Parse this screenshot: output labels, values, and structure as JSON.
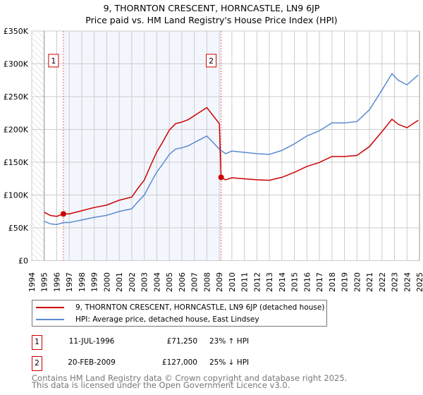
{
  "chart_data": {
    "type": "line",
    "title": "9, THORNTON CRESCENT, HORNCASTLE, LN9 6JP",
    "subtitle": "Price paid vs. HM Land Registry's House Price Index (HPI)",
    "xlim": [
      1994,
      2025
    ],
    "ylim": [
      0,
      350000
    ],
    "x_ticks": [
      "1994",
      "1995",
      "1996",
      "1997",
      "1998",
      "1999",
      "2000",
      "2001",
      "2002",
      "2003",
      "2004",
      "2005",
      "2006",
      "2007",
      "2008",
      "2009",
      "2010",
      "2011",
      "2012",
      "2013",
      "2014",
      "2015",
      "2016",
      "2017",
      "2018",
      "2019",
      "2020",
      "2021",
      "2022",
      "2023",
      "2024",
      "2025"
    ],
    "y_ticks": [
      {
        "v": 0,
        "label": "£0"
      },
      {
        "v": 50000,
        "label": "£50K"
      },
      {
        "v": 100000,
        "label": "£100K"
      },
      {
        "v": 150000,
        "label": "£150K"
      },
      {
        "v": 200000,
        "label": "£200K"
      },
      {
        "v": 250000,
        "label": "£250K"
      },
      {
        "v": 300000,
        "label": "£300K"
      },
      {
        "v": 350000,
        "label": "£350K"
      }
    ],
    "grid": true,
    "series": [
      {
        "name": "9, THORNTON CRESCENT, HORNCASTLE, LN9 6JP (detached house)",
        "color": "#cc0000",
        "x": [
          1995,
          1995.5,
          1996,
          1996.53,
          1997,
          1998,
          1999,
          2000,
          2001,
          2002,
          2002.5,
          2003,
          2003.5,
          2004,
          2004.5,
          2005,
          2005.5,
          2006,
          2006.5,
          2007,
          2007.5,
          2008,
          2008.5,
          2009,
          2009.14,
          2009.5,
          2010,
          2011,
          2012,
          2013,
          2014,
          2015,
          2016,
          2017,
          2018,
          2019,
          2020,
          2021,
          2022,
          2022.8,
          2023.3,
          2024,
          2024.9
        ],
        "y": [
          73700,
          68800,
          67500,
          71250,
          71200,
          76100,
          81000,
          84700,
          92100,
          97000,
          110500,
          122800,
          144900,
          165800,
          181700,
          199000,
          208800,
          211200,
          214900,
          221000,
          227200,
          233300,
          221000,
          208800,
          127000,
          123200,
          126300,
          124700,
          123200,
          122500,
          127000,
          134600,
          143600,
          149700,
          158800,
          158800,
          160300,
          173900,
          196600,
          215500,
          207900,
          202600,
          214000
        ]
      },
      {
        "name": "HPI: Average price, detached house, East Lindsey",
        "color": "#5b8bd0",
        "x": [
          1995,
          1995.5,
          1996,
          1996.53,
          1997,
          1998,
          1999,
          2000,
          2001,
          2002,
          2002.5,
          2003,
          2003.5,
          2004,
          2004.5,
          2005,
          2005.5,
          2006,
          2006.5,
          2007,
          2007.5,
          2008,
          2008.5,
          2009,
          2009.14,
          2009.5,
          2010,
          2011,
          2012,
          2013,
          2014,
          2015,
          2016,
          2017,
          2018,
          2019,
          2020,
          2021,
          2022,
          2022.8,
          2023.3,
          2024,
          2024.9
        ],
        "y": [
          60000,
          56000,
          55000,
          58000,
          58000,
          62000,
          66000,
          69000,
          75000,
          79000,
          90000,
          100000,
          118000,
          135000,
          148000,
          162000,
          170000,
          172000,
          175000,
          180000,
          185000,
          190000,
          180000,
          170000,
          168000,
          163000,
          167000,
          165000,
          163000,
          162000,
          168000,
          178000,
          190000,
          198000,
          210000,
          210000,
          212000,
          230000,
          260000,
          285000,
          275000,
          268000,
          283000
        ]
      }
    ],
    "sales": [
      {
        "num": "1",
        "x": 1996.53,
        "y": 71250,
        "date": "11-JUL-1996",
        "price": "£71,250",
        "hpi": "23% ↑ HPI"
      },
      {
        "num": "2",
        "x": 2009.14,
        "y": 127000,
        "date": "20-FEB-2009",
        "price": "£127,000",
        "hpi": "25% ↓ HPI"
      }
    ],
    "legend_position": "bottom"
  },
  "footer": {
    "line1": "Contains HM Land Registry data © Crown copyright and database right 2025.",
    "line2": "This data is licensed under the Open Government Licence v3.0."
  }
}
